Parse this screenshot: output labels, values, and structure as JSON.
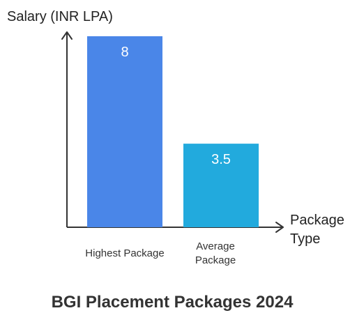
{
  "chart_data": {
    "type": "bar",
    "title": "BGI Placement Packages 2024",
    "ylabel": "Salary (INR LPA)",
    "xlabel": "Package Type",
    "categories": [
      [
        "Highest Package"
      ],
      [
        "Average",
        "Package"
      ]
    ],
    "values": [
      8,
      3.5
    ],
    "value_labels": [
      "8",
      "3.5"
    ],
    "colors": [
      "#4a86e8",
      "#22aadd"
    ],
    "ylim": [
      0,
      8.9
    ],
    "grid": false,
    "legend": "none"
  }
}
